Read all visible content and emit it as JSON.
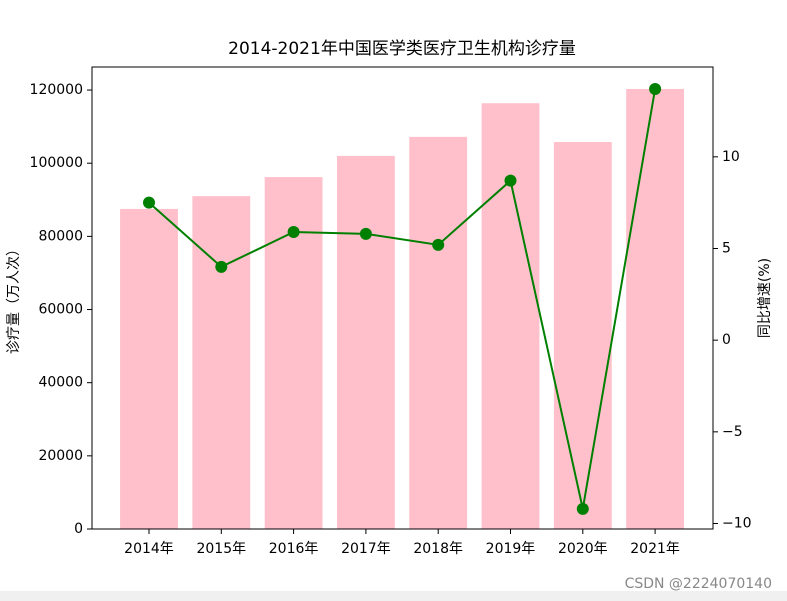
{
  "chart_data": {
    "type": "bar_line",
    "title": "2014-2021年中国医学类医疗卫生机构诊疗量",
    "categories": [
      "2014年",
      "2015年",
      "2016年",
      "2017年",
      "2018年",
      "2019年",
      "2020年",
      "2021年"
    ],
    "series": [
      {
        "name": "诊疗量",
        "type": "bar",
        "color": "#ffc0cb",
        "values": [
          87500,
          91000,
          96200,
          102000,
          107200,
          116400,
          105800,
          120300
        ]
      },
      {
        "name": "同比增速",
        "type": "line",
        "axis": "y2",
        "color": "#008000",
        "values": [
          7.5,
          4.0,
          5.9,
          5.8,
          5.2,
          8.7,
          -9.2,
          13.7
        ]
      }
    ],
    "ylabel": "诊疗量（万人次）",
    "y2label": "同比增速(%)",
    "ylim": [
      0,
      126300
    ],
    "yticks": [
      0,
      20000,
      40000,
      60000,
      80000,
      100000,
      120000
    ],
    "y2lim": [
      -10.3,
      14.9
    ],
    "y2ticks": [
      {
        "value": -10,
        "label": "−10"
      },
      {
        "value": -5,
        "label": "−5"
      },
      0,
      5,
      10
    ],
    "watermark": "CSDN @2224070140"
  }
}
